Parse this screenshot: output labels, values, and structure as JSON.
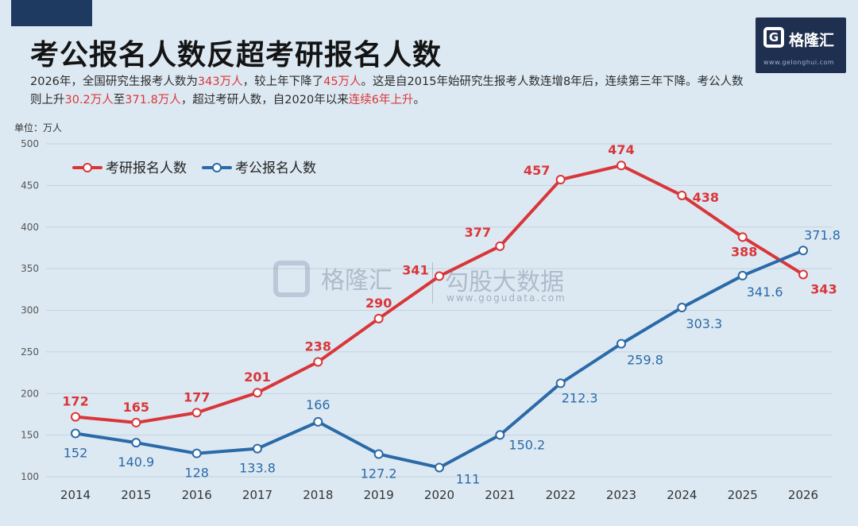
{
  "title": "考公报名人数反超考研报名人数",
  "description": {
    "p1": "2026年，全国研究生报考人数为",
    "h1": "343万人",
    "p2": "，较上年下降了",
    "h2": "45万人",
    "p3": "。这是自2015年始研究生报考人数连增8年后，连续第三年下降。考公人数则上升",
    "h3": "30.2万人",
    "p4": "至",
    "h4": "371.8万人",
    "p5": "，超过考研人数，自2020年以来",
    "h5": "连续6年上升",
    "p6": "。"
  },
  "logo": {
    "text": "格隆汇",
    "mark": "G",
    "sub": "www.gelonghui.com"
  },
  "watermark": {
    "brand": "格隆汇",
    "product": "勾股大数据",
    "url": "www.gogudata.com"
  },
  "unit_label": "单位：万人",
  "colors": {
    "kaoyan": "#d9363a",
    "kaogong": "#2a6aa8",
    "grid": "#c3d2df",
    "accent": "#d9363a"
  },
  "chart_data": {
    "type": "line",
    "title": "考公报名人数反超考研报名人数",
    "xlabel": "",
    "ylabel": "万人",
    "ylim": [
      100,
      500
    ],
    "yticks": [
      100,
      150,
      200,
      250,
      300,
      350,
      400,
      450,
      500
    ],
    "grid": true,
    "legend_position": "top-left",
    "x": [
      "2014",
      "2015",
      "2016",
      "2017",
      "2018",
      "2019",
      "2020",
      "2021",
      "2022",
      "2023",
      "2024",
      "2025",
      "2026"
    ],
    "series": [
      {
        "name": "考研报名人数",
        "color": "#d9363a",
        "values": [
          172,
          165,
          177,
          201,
          238,
          290,
          341,
          377,
          457,
          474,
          438,
          388,
          343
        ],
        "labels": [
          "172",
          "165",
          "177",
          "201",
          "238",
          "290",
          "341",
          "377",
          "457",
          "474",
          "438",
          "388",
          "343"
        ]
      },
      {
        "name": "考公报名人数",
        "color": "#2a6aa8",
        "values": [
          152,
          140.9,
          128,
          133.8,
          166,
          127.2,
          111,
          150.2,
          212.3,
          259.8,
          303.3,
          341.6,
          371.8
        ],
        "labels": [
          "152",
          "140.9",
          "128",
          "133.8",
          "166",
          "127.2",
          "111",
          "150.2",
          "212.3",
          "259.8",
          "303.3",
          "341.6",
          "371.8"
        ]
      }
    ]
  }
}
